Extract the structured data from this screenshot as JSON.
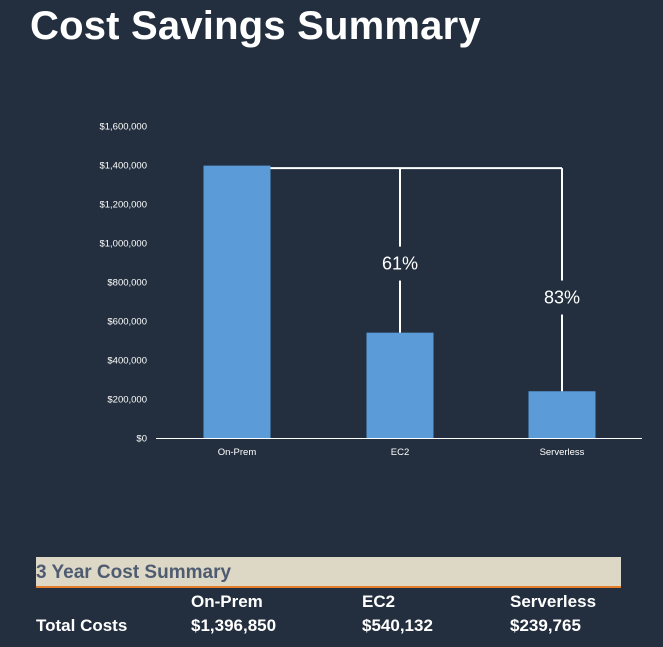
{
  "page": {
    "title": "Cost Savings Summary"
  },
  "colors": {
    "background": "#232f3e",
    "bar": "#5a9bd8",
    "axis": "#ffffff",
    "text": "#ffffff",
    "banner_bg": "#ddd8c6",
    "banner_text": "#4e5b71",
    "banner_border": "#e27d2b"
  },
  "chart_data": {
    "type": "bar",
    "title": "",
    "xlabel": "",
    "ylabel": "",
    "categories": [
      "On-Prem",
      "EC2",
      "Serverless"
    ],
    "values": [
      1396850,
      540132,
      239765
    ],
    "ylim": [
      0,
      1600000
    ],
    "yticks": [
      0,
      200000,
      400000,
      600000,
      800000,
      1000000,
      1200000,
      1400000,
      1600000
    ],
    "ytick_labels": [
      "$0",
      "$200,000",
      "$400,000",
      "$600,000",
      "$800,000",
      "$1,000,000",
      "$1,200,000",
      "$1,400,000",
      "$1,600,000"
    ],
    "grid": false,
    "annotations": [
      {
        "from": "On-Prem",
        "to": "EC2",
        "label": "61%"
      },
      {
        "from": "On-Prem",
        "to": "Serverless",
        "label": "83%"
      }
    ]
  },
  "summary": {
    "title": "3 Year Cost Summary",
    "row_label": "Total Costs",
    "columns": [
      "On-Prem",
      "EC2",
      "Serverless"
    ],
    "values": [
      "$1,396,850",
      "$540,132",
      "$239,765"
    ]
  }
}
